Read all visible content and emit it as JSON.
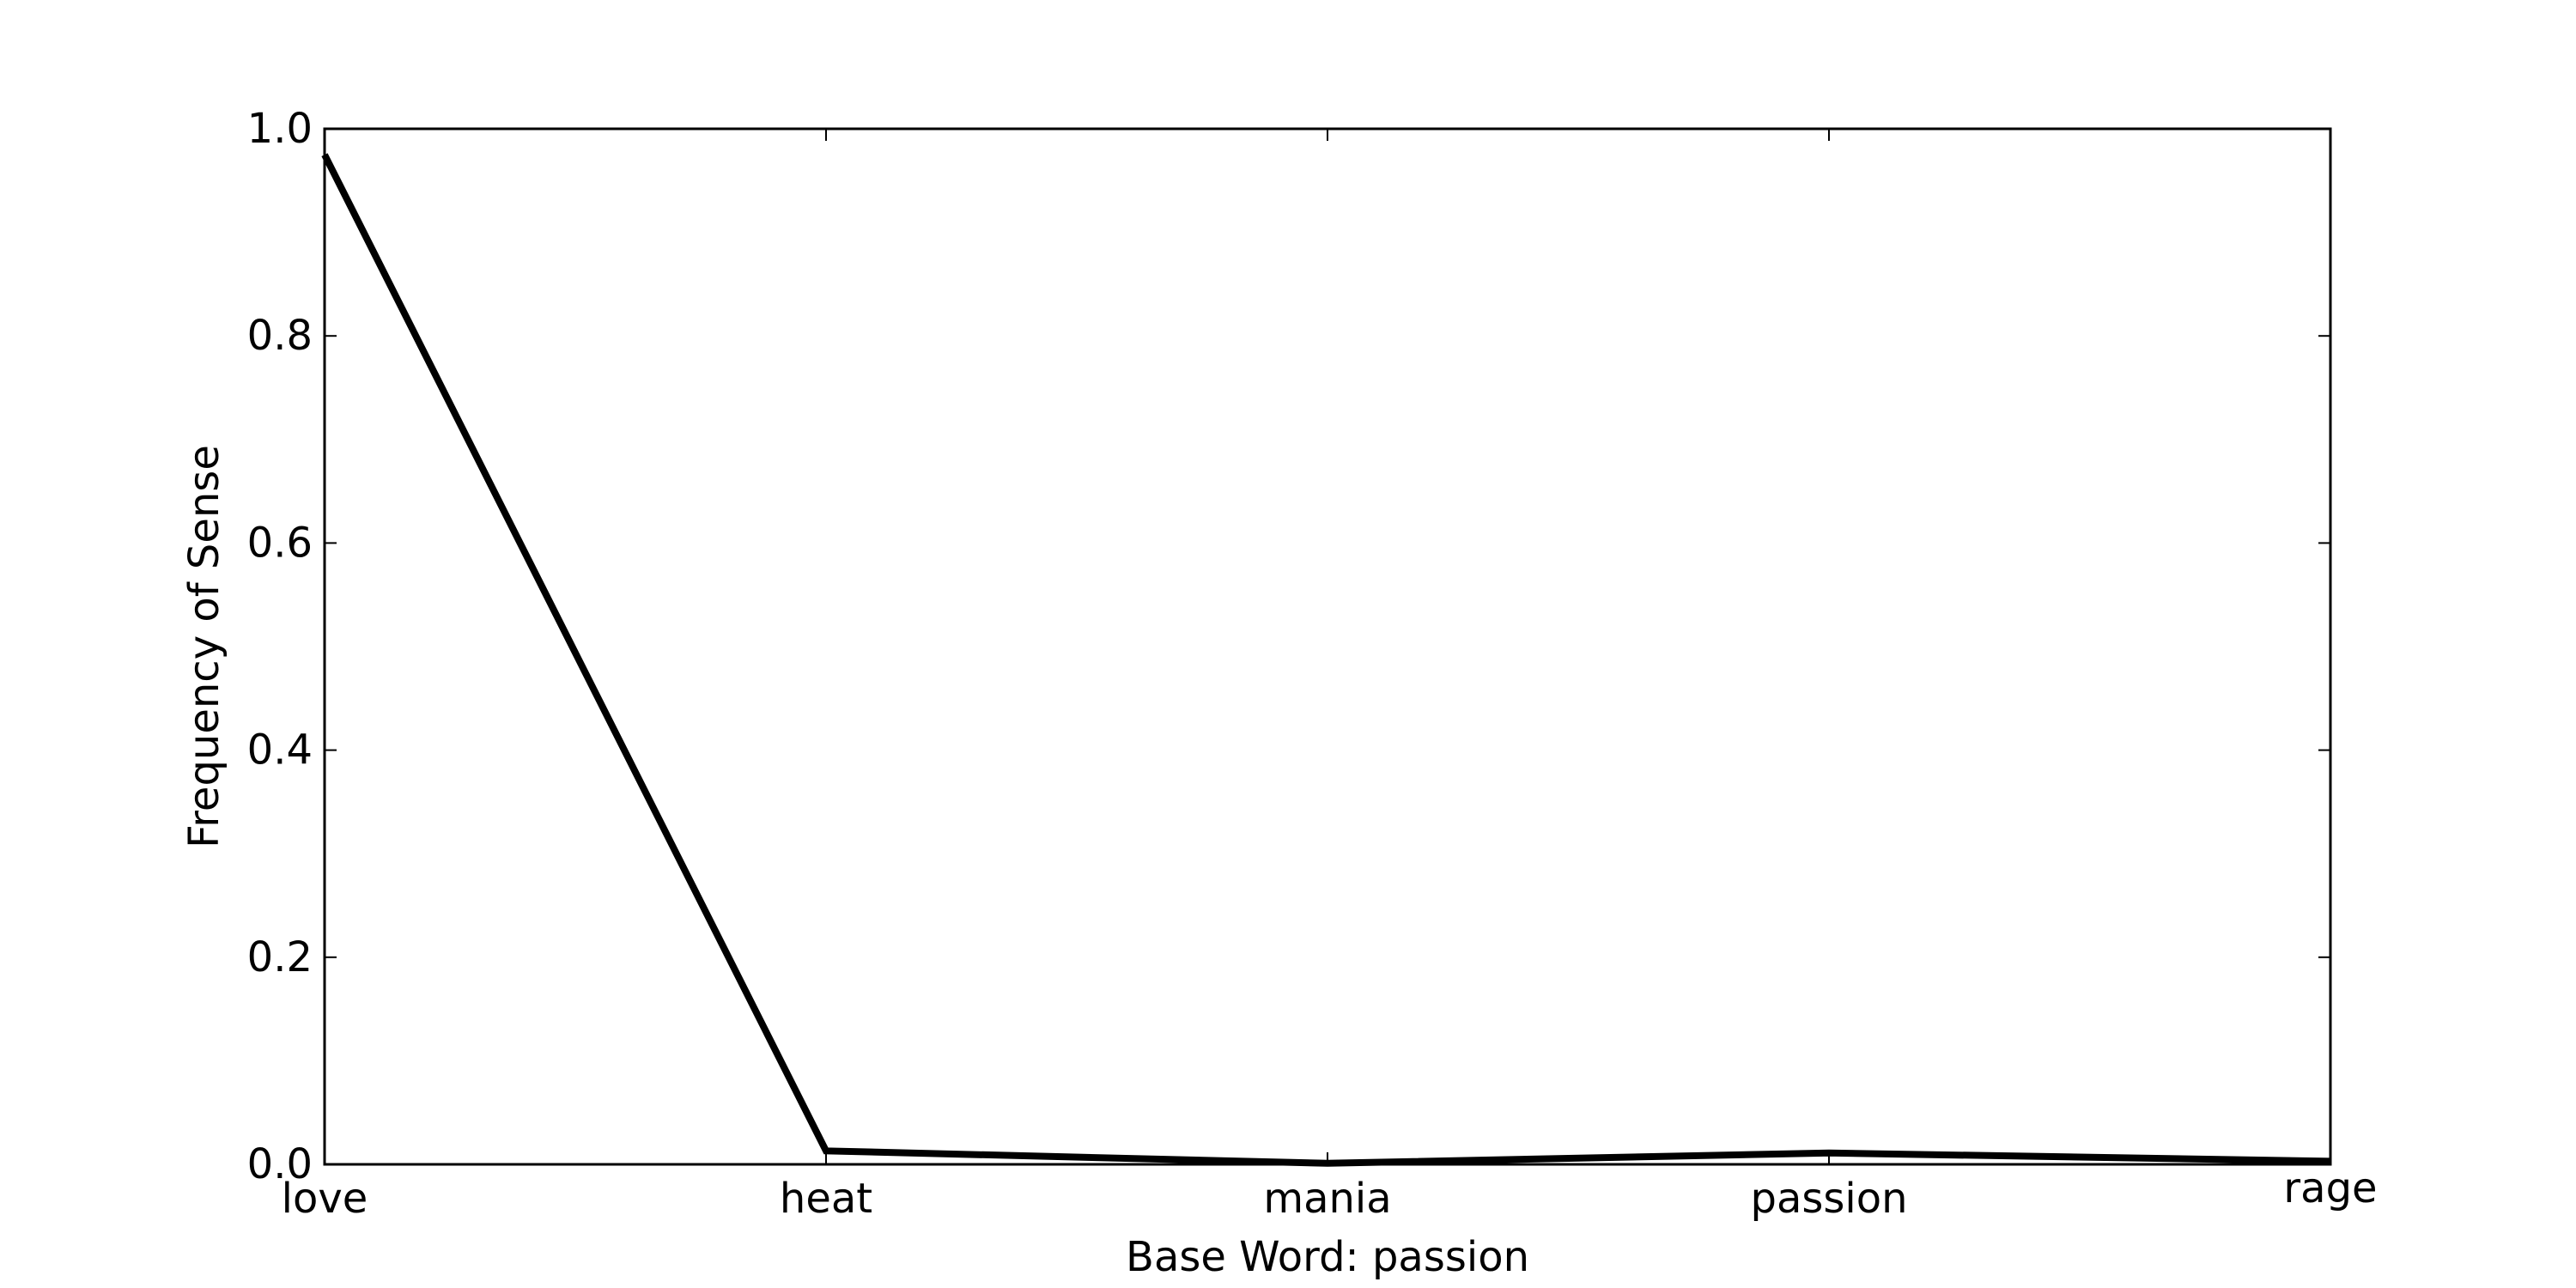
{
  "chart_data": {
    "type": "line",
    "title": "",
    "xlabel": "Base Word: passion",
    "ylabel": "Frequency of Sense",
    "categories": [
      "love",
      "heat",
      "mania",
      "passion",
      "rage"
    ],
    "series": [
      {
        "values": [
          0.975,
          0.013,
          0.001,
          0.011,
          0.003
        ]
      }
    ],
    "ylim": [
      0.0,
      1.0
    ],
    "yticks": [
      "0.0",
      "0.2",
      "0.4",
      "0.6",
      "0.8",
      "1.0"
    ],
    "grid": false,
    "legend": "none",
    "line_color": "#000000"
  }
}
